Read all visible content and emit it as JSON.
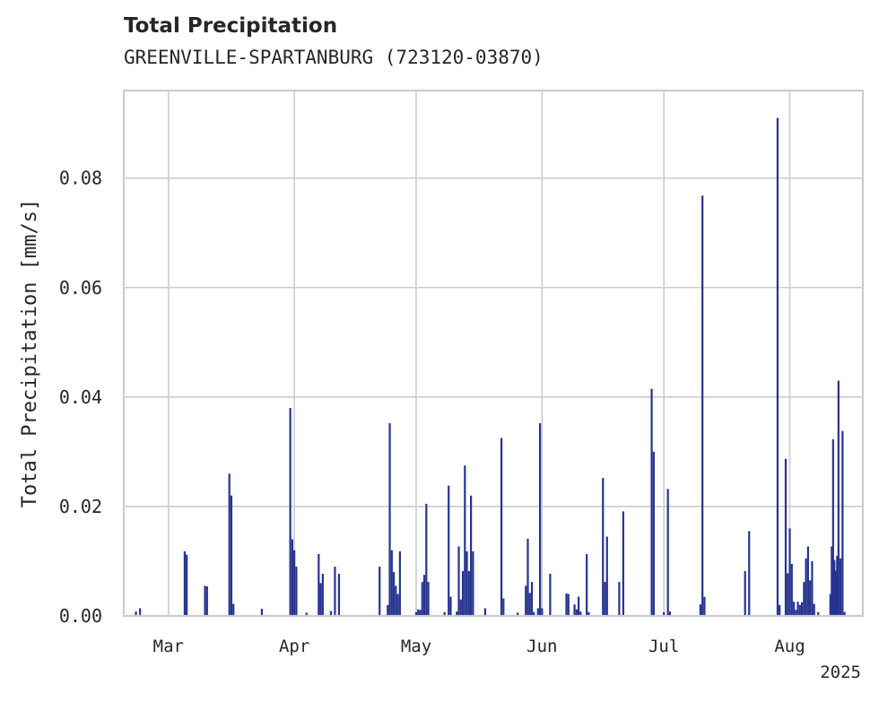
{
  "chart_data": {
    "type": "bar",
    "title": "Total Precipitation",
    "subtitle": "GREENVILLE-SPARTANBURG (723120-03870)",
    "ylabel": "Total Precipitation [mm/s]",
    "xlabel": "",
    "x_tick_labels": [
      "Mar",
      "Apr",
      "May",
      "Jun",
      "Jul",
      "Aug"
    ],
    "x_tick_dates": [
      "2025-03-01",
      "2025-04-01",
      "2025-05-01",
      "2025-06-01",
      "2025-07-01",
      "2025-08-01"
    ],
    "x_year_label": "2025",
    "xlim": [
      "2025-02-18",
      "2025-08-19"
    ],
    "ylim": [
      0,
      0.096
    ],
    "y_ticks": [
      0.0,
      0.02,
      0.04,
      0.06,
      0.08
    ],
    "y_tick_labels": [
      "0.00",
      "0.02",
      "0.04",
      "0.06",
      "0.08"
    ],
    "grid": true,
    "colors": {
      "bars": "#26348f",
      "grid": "#cccccc",
      "axes": "#cccccc"
    },
    "series": [
      {
        "points": [
          {
            "x": "2025-02-21",
            "y": 0.0008
          },
          {
            "x": "2025-02-22",
            "y": 0.0014
          },
          {
            "x": "2025-03-05",
            "y": 0.0118
          },
          {
            "x": "2025-03-05T12",
            "y": 0.0112
          },
          {
            "x": "2025-03-10",
            "y": 0.0055
          },
          {
            "x": "2025-03-10T12",
            "y": 0.0054
          },
          {
            "x": "2025-03-16",
            "y": 0.026
          },
          {
            "x": "2025-03-16T12",
            "y": 0.022
          },
          {
            "x": "2025-03-17",
            "y": 0.0022
          },
          {
            "x": "2025-03-24",
            "y": 0.0013
          },
          {
            "x": "2025-03-31",
            "y": 0.038
          },
          {
            "x": "2025-03-31T12",
            "y": 0.014
          },
          {
            "x": "2025-04-01",
            "y": 0.012
          },
          {
            "x": "2025-04-01T12",
            "y": 0.009
          },
          {
            "x": "2025-04-04",
            "y": 0.0006
          },
          {
            "x": "2025-04-07",
            "y": 0.0113
          },
          {
            "x": "2025-04-07T12",
            "y": 0.006
          },
          {
            "x": "2025-04-08",
            "y": 0.0077
          },
          {
            "x": "2025-04-10",
            "y": 0.0009
          },
          {
            "x": "2025-04-11",
            "y": 0.009
          },
          {
            "x": "2025-04-12",
            "y": 0.0077
          },
          {
            "x": "2025-04-22",
            "y": 0.009
          },
          {
            "x": "2025-04-24",
            "y": 0.002
          },
          {
            "x": "2025-04-24T12",
            "y": 0.0352
          },
          {
            "x": "2025-04-25",
            "y": 0.012
          },
          {
            "x": "2025-04-25T12",
            "y": 0.008
          },
          {
            "x": "2025-04-26",
            "y": 0.0055
          },
          {
            "x": "2025-04-26T12",
            "y": 0.004
          },
          {
            "x": "2025-04-27",
            "y": 0.0118
          },
          {
            "x": "2025-05-01",
            "y": 0.0007
          },
          {
            "x": "2025-05-01T12",
            "y": 0.0012
          },
          {
            "x": "2025-05-02",
            "y": 0.0011
          },
          {
            "x": "2025-05-02T12",
            "y": 0.0062
          },
          {
            "x": "2025-05-03",
            "y": 0.0075
          },
          {
            "x": "2025-05-03T12",
            "y": 0.0205
          },
          {
            "x": "2025-05-04",
            "y": 0.0062
          },
          {
            "x": "2025-05-08",
            "y": 0.0007
          },
          {
            "x": "2025-05-09",
            "y": 0.0238
          },
          {
            "x": "2025-05-09T12",
            "y": 0.0035
          },
          {
            "x": "2025-05-11",
            "y": 0.0008
          },
          {
            "x": "2025-05-11T12",
            "y": 0.0127
          },
          {
            "x": "2025-05-12",
            "y": 0.003
          },
          {
            "x": "2025-05-12T12",
            "y": 0.0082
          },
          {
            "x": "2025-05-13",
            "y": 0.0275
          },
          {
            "x": "2025-05-13T12",
            "y": 0.0118
          },
          {
            "x": "2025-05-14",
            "y": 0.0082
          },
          {
            "x": "2025-05-14T12",
            "y": 0.022
          },
          {
            "x": "2025-05-15",
            "y": 0.0118
          },
          {
            "x": "2025-05-18",
            "y": 0.0014
          },
          {
            "x": "2025-05-22",
            "y": 0.0325
          },
          {
            "x": "2025-05-22T12",
            "y": 0.0032
          },
          {
            "x": "2025-05-26",
            "y": 0.0006
          },
          {
            "x": "2025-05-28",
            "y": 0.0055
          },
          {
            "x": "2025-05-28T12",
            "y": 0.0141
          },
          {
            "x": "2025-05-29",
            "y": 0.0042
          },
          {
            "x": "2025-05-29T12",
            "y": 0.0062
          },
          {
            "x": "2025-05-30",
            "y": 0.0007
          },
          {
            "x": "2025-05-31",
            "y": 0.0014
          },
          {
            "x": "2025-05-31T12",
            "y": 0.0352
          },
          {
            "x": "2025-06-01",
            "y": 0.0014
          },
          {
            "x": "2025-06-03",
            "y": 0.0077
          },
          {
            "x": "2025-06-07",
            "y": 0.0041
          },
          {
            "x": "2025-06-07T12",
            "y": 0.004
          },
          {
            "x": "2025-06-09",
            "y": 0.0021
          },
          {
            "x": "2025-06-09T12",
            "y": 0.0012
          },
          {
            "x": "2025-06-10",
            "y": 0.0035
          },
          {
            "x": "2025-06-10T12",
            "y": 0.0008
          },
          {
            "x": "2025-06-12",
            "y": 0.0113
          },
          {
            "x": "2025-06-12T12",
            "y": 0.0007
          },
          {
            "x": "2025-06-16",
            "y": 0.0252
          },
          {
            "x": "2025-06-16T12",
            "y": 0.0062
          },
          {
            "x": "2025-06-17",
            "y": 0.0145
          },
          {
            "x": "2025-06-20",
            "y": 0.0062
          },
          {
            "x": "2025-06-21",
            "y": 0.0191
          },
          {
            "x": "2025-06-28",
            "y": 0.0415
          },
          {
            "x": "2025-06-28T12",
            "y": 0.03
          },
          {
            "x": "2025-07-01",
            "y": 0.0007
          },
          {
            "x": "2025-07-02",
            "y": 0.0232
          },
          {
            "x": "2025-07-02T12",
            "y": 0.0008
          },
          {
            "x": "2025-07-10",
            "y": 0.0021
          },
          {
            "x": "2025-07-10T12",
            "y": 0.0768
          },
          {
            "x": "2025-07-11",
            "y": 0.0035
          },
          {
            "x": "2025-07-21",
            "y": 0.0082
          },
          {
            "x": "2025-07-22",
            "y": 0.0155
          },
          {
            "x": "2025-07-29",
            "y": 0.091
          },
          {
            "x": "2025-07-29T12",
            "y": 0.002
          },
          {
            "x": "2025-07-31",
            "y": 0.0287
          },
          {
            "x": "2025-07-31T12",
            "y": 0.0078
          },
          {
            "x": "2025-08-01",
            "y": 0.016
          },
          {
            "x": "2025-08-01T12",
            "y": 0.0095
          },
          {
            "x": "2025-08-02",
            "y": 0.0026
          },
          {
            "x": "2025-08-02T12",
            "y": 0.0011
          },
          {
            "x": "2025-08-03",
            "y": 0.0026
          },
          {
            "x": "2025-08-03T12",
            "y": 0.002
          },
          {
            "x": "2025-08-04",
            "y": 0.0025
          },
          {
            "x": "2025-08-04T12",
            "y": 0.0062
          },
          {
            "x": "2025-08-05",
            "y": 0.0105
          },
          {
            "x": "2025-08-05T12",
            "y": 0.0127
          },
          {
            "x": "2025-08-06",
            "y": 0.0065
          },
          {
            "x": "2025-08-06T12",
            "y": 0.01
          },
          {
            "x": "2025-08-07",
            "y": 0.0022
          },
          {
            "x": "2025-08-08",
            "y": 0.0007
          },
          {
            "x": "2025-08-11",
            "y": 0.004
          },
          {
            "x": "2025-08-11T08",
            "y": 0.0127
          },
          {
            "x": "2025-08-11T16",
            "y": 0.0323
          },
          {
            "x": "2025-08-12",
            "y": 0.0102
          },
          {
            "x": "2025-08-12T08",
            "y": 0.0083
          },
          {
            "x": "2025-08-12T16",
            "y": 0.011
          },
          {
            "x": "2025-08-13",
            "y": 0.043
          },
          {
            "x": "2025-08-13T12",
            "y": 0.0105
          },
          {
            "x": "2025-08-14",
            "y": 0.0338
          },
          {
            "x": "2025-08-14T12",
            "y": 0.0007
          }
        ]
      }
    ]
  }
}
